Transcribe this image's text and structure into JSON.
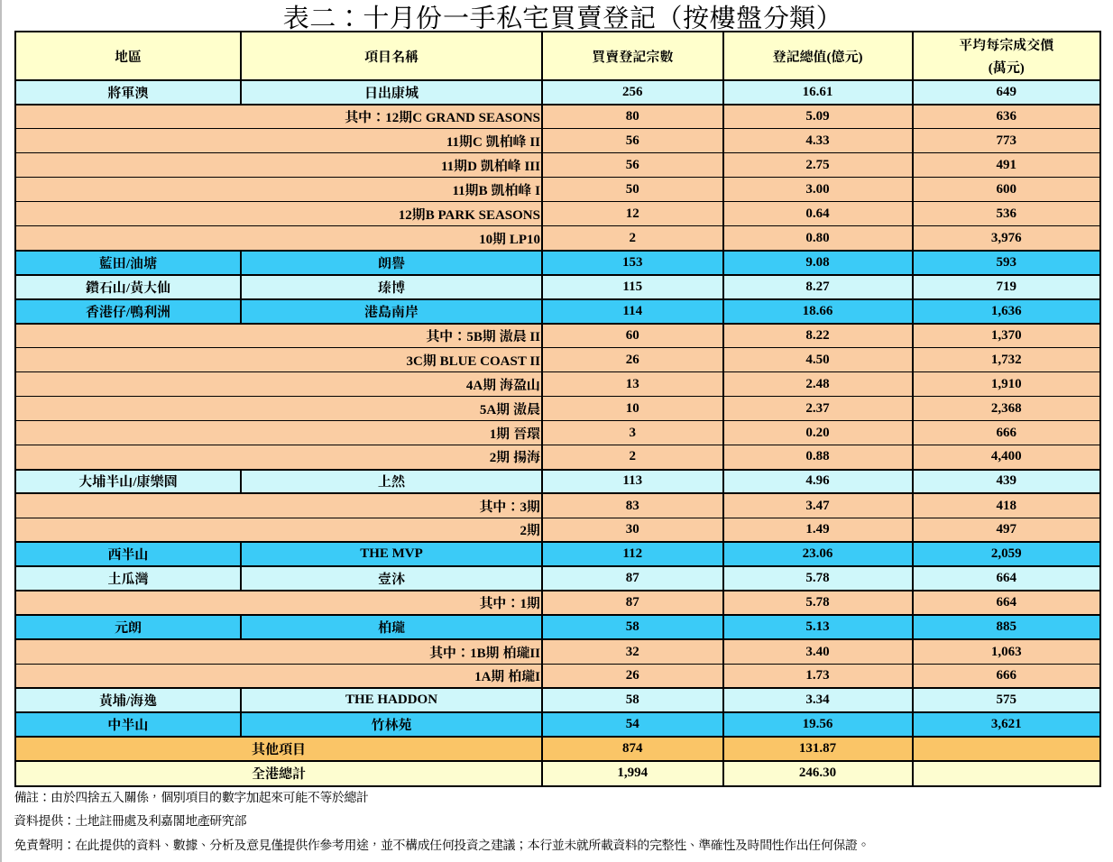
{
  "page": {
    "title": "表二：十月份一手私宅買賣登記（按樓盤分類）"
  },
  "table": {
    "columns": [
      {
        "key": "district",
        "label": "地區"
      },
      {
        "key": "project",
        "label": "項目名稱"
      },
      {
        "key": "count",
        "label": "買賣登記宗數"
      },
      {
        "key": "value",
        "label": "登記總值(億元)"
      },
      {
        "key": "avg_price",
        "label_line1": "平均每宗成交價",
        "label_line2": "(萬元)"
      }
    ],
    "rows": [
      {
        "type": "district",
        "bg": "cyan",
        "district": "將軍澳",
        "project": "日出康城",
        "count": "256",
        "value": "16.61",
        "avg": "649"
      },
      {
        "type": "sub",
        "bg": "peach",
        "project": "其中：12期C GRAND SEASONS",
        "count": "80",
        "value": "5.09",
        "avg": "636"
      },
      {
        "type": "sub",
        "bg": "peach",
        "project": "11期C 凱柏峰 II",
        "count": "56",
        "value": "4.33",
        "avg": "773"
      },
      {
        "type": "sub",
        "bg": "peach",
        "project": "11期D 凱柏峰 III",
        "count": "56",
        "value": "2.75",
        "avg": "491"
      },
      {
        "type": "sub",
        "bg": "peach",
        "project": "11期B 凱柏峰 I",
        "count": "50",
        "value": "3.00",
        "avg": "600"
      },
      {
        "type": "sub",
        "bg": "peach",
        "project": "12期B PARK SEASONS",
        "count": "12",
        "value": "0.64",
        "avg": "536"
      },
      {
        "type": "sub",
        "bg": "peach",
        "project": "10期 LP10",
        "count": "2",
        "value": "0.80",
        "avg": "3,976"
      },
      {
        "type": "district",
        "bg": "blue",
        "district": "藍田/油塘",
        "project": "朗譽",
        "count": "153",
        "value": "9.08",
        "avg": "593"
      },
      {
        "type": "district",
        "bg": "cyan",
        "district": "鑽石山/黃大仙",
        "project": "瑧博",
        "count": "115",
        "value": "8.27",
        "avg": "719"
      },
      {
        "type": "district",
        "bg": "blue",
        "district": "香港仔/鴨利洲",
        "project": "港島南岸",
        "count": "114",
        "value": "18.66",
        "avg": "1,636"
      },
      {
        "type": "sub",
        "bg": "peach",
        "project": "其中：5B期 滶晨 II",
        "count": "60",
        "value": "8.22",
        "avg": "1,370"
      },
      {
        "type": "sub",
        "bg": "peach",
        "project": "3C期 BLUE COAST II",
        "count": "26",
        "value": "4.50",
        "avg": "1,732"
      },
      {
        "type": "sub",
        "bg": "peach",
        "project": "4A期 海盈山",
        "count": "13",
        "value": "2.48",
        "avg": "1,910"
      },
      {
        "type": "sub",
        "bg": "peach",
        "project": "5A期 滶晨",
        "count": "10",
        "value": "2.37",
        "avg": "2,368"
      },
      {
        "type": "sub",
        "bg": "peach",
        "project": "1期 晉環",
        "count": "3",
        "value": "0.20",
        "avg": "666"
      },
      {
        "type": "sub",
        "bg": "peach",
        "project": "2期 揚海",
        "count": "2",
        "value": "0.88",
        "avg": "4,400"
      },
      {
        "type": "district",
        "bg": "cyan",
        "district": "大埔半山/康樂園",
        "project": "上然",
        "count": "113",
        "value": "4.96",
        "avg": "439"
      },
      {
        "type": "sub",
        "bg": "peach",
        "project": "其中：3期",
        "count": "83",
        "value": "3.47",
        "avg": "418"
      },
      {
        "type": "sub",
        "bg": "peach",
        "project": "2期",
        "count": "30",
        "value": "1.49",
        "avg": "497"
      },
      {
        "type": "district",
        "bg": "blue",
        "district": "西半山",
        "project": "THE MVP",
        "count": "112",
        "value": "23.06",
        "avg": "2,059"
      },
      {
        "type": "district",
        "bg": "cyan",
        "district": "土瓜灣",
        "project": "壹沐",
        "count": "87",
        "value": "5.78",
        "avg": "664"
      },
      {
        "type": "sub",
        "bg": "peach",
        "project": "其中：1期",
        "count": "87",
        "value": "5.78",
        "avg": "664"
      },
      {
        "type": "district",
        "bg": "blue",
        "district": "元朗",
        "project": "柏瓏",
        "count": "58",
        "value": "5.13",
        "avg": "885"
      },
      {
        "type": "sub",
        "bg": "peach",
        "project": "其中：1B期 柏瓏II",
        "count": "32",
        "value": "3.40",
        "avg": "1,063"
      },
      {
        "type": "sub",
        "bg": "peach",
        "project": "1A期 柏瓏I",
        "count": "26",
        "value": "1.73",
        "avg": "666"
      },
      {
        "type": "district",
        "bg": "cyan",
        "district": "黃埔/海逸",
        "project": "THE HADDON",
        "count": "58",
        "value": "3.34",
        "avg": "575"
      },
      {
        "type": "district",
        "bg": "blue",
        "district": "中半山",
        "project": "竹林苑",
        "count": "54",
        "value": "19.56",
        "avg": "3,621"
      },
      {
        "type": "total",
        "bg": "orange",
        "label": "其他項目",
        "count": "874",
        "value": "131.87",
        "avg": ""
      },
      {
        "type": "total",
        "bg": "yellow",
        "label": "全港總計",
        "count": "1,994",
        "value": "246.30",
        "avg": ""
      }
    ]
  },
  "footnotes": [
    "備註：由於四捨五入關係，個別項目的數字加起來可能不等於總計",
    "資料提供：土地註冊處及利嘉閣地產研究部",
    "免責聲明：在此提供的資料、數據、分析及意見僅提供作參考用途，並不構成任何投資之建議；本行並未就所載資料的完整性、準確性及時間性作出任何保證。"
  ],
  "colors": {
    "header_yellow": "#FFFFCC",
    "row_cyan": "#CFF7FA",
    "row_blue": "#3BCBF7",
    "row_peach": "#FACDA3",
    "row_orange": "#FAC567",
    "row_yellow": "#FDFDD0",
    "border_black": "#000000"
  }
}
